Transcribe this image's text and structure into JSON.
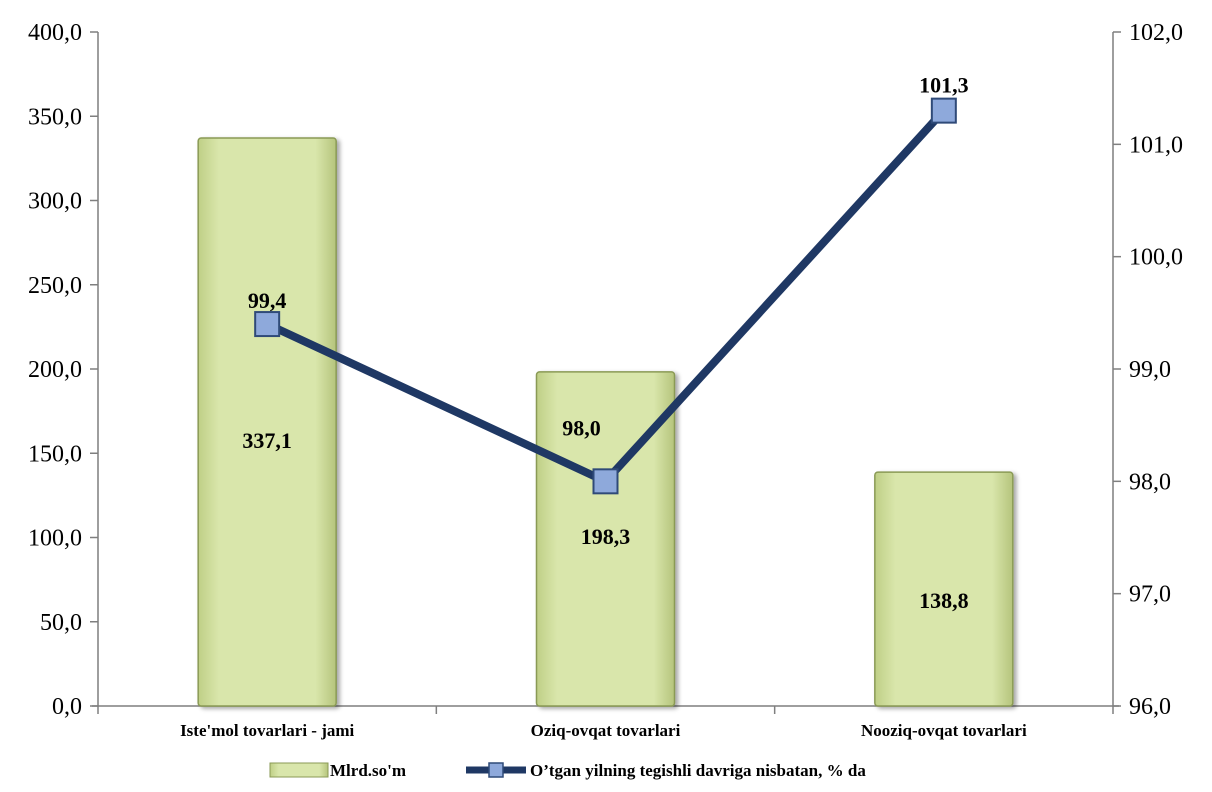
{
  "chart_data": {
    "type": "bar",
    "categories": [
      "Iste'mol tovarlari - jami",
      "Oziq-ovqat tovarlari",
      "Nooziq-ovqat tovarlari"
    ],
    "series": [
      {
        "name": "Mlrd.so'm",
        "type": "bar",
        "axis": "left",
        "values": [
          337.1,
          198.3,
          138.8
        ],
        "labels": [
          "337,1",
          "198,3",
          "138,8"
        ],
        "color": "#d7e4a8"
      },
      {
        "name": "O’tgan yilning tegishli davriga nisbatan, % da",
        "type": "line",
        "axis": "right",
        "values": [
          99.4,
          98.0,
          101.3
        ],
        "labels": [
          "99,4",
          "98,0",
          "101,3"
        ],
        "color": "#1f3864",
        "marker_color": "#8ea9db"
      }
    ],
    "y_left": {
      "ylim": [
        0,
        400
      ],
      "ticks": [
        0,
        50,
        100,
        150,
        200,
        250,
        300,
        350,
        400
      ],
      "tick_labels": [
        "0,0",
        "50,0",
        "100,0",
        "150,0",
        "200,0",
        "250,0",
        "300,0",
        "350,0",
        "400,0"
      ]
    },
    "y_right": {
      "ylim": [
        96,
        102
      ],
      "ticks": [
        96,
        97,
        98,
        99,
        100,
        101,
        102
      ],
      "tick_labels": [
        "96,0",
        "97,0",
        "98,0",
        "99,0",
        "100,0",
        "101,0",
        "102,0"
      ]
    },
    "legend_position": "bottom",
    "grid": false
  }
}
